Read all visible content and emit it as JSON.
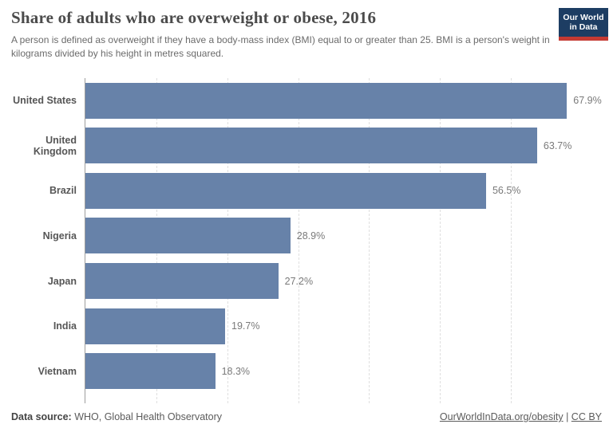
{
  "header": {
    "title": "Share of adults who are overweight or obese, 2016",
    "subtitle": "A person is defined as overweight if they have a body-mass index (BMI) equal to or greater than 25. BMI is a person's weight in kilograms divided by his height in metres squared."
  },
  "logo": {
    "line1": "Our World",
    "line2": "in Data",
    "bg_color": "#1d3d63",
    "stripe_color": "#c53a33"
  },
  "chart_data": {
    "type": "bar",
    "orientation": "horizontal",
    "title": "Share of adults who are overweight or obese, 2016",
    "xlabel": "",
    "ylabel": "",
    "categories": [
      "United States",
      "United Kingdom",
      "Brazil",
      "Nigeria",
      "Japan",
      "India",
      "Vietnam"
    ],
    "values": [
      67.9,
      63.7,
      56.5,
      28.9,
      27.2,
      19.7,
      18.3
    ],
    "value_labels": [
      "67.9%",
      "63.7%",
      "56.5%",
      "28.9%",
      "27.2%",
      "19.7%",
      "18.3%"
    ],
    "xlim": [
      0,
      74.4
    ],
    "gridlines": [
      10,
      20,
      30,
      40,
      50,
      60
    ],
    "grid_style": "dashed",
    "legend": "none",
    "bar_color": "#6782a9"
  },
  "footer": {
    "source_label": "Data source:",
    "source_value": " WHO, Global Health Observatory",
    "link1": "OurWorldInData.org/obesity",
    "separator": " | ",
    "link2": "CC BY"
  }
}
